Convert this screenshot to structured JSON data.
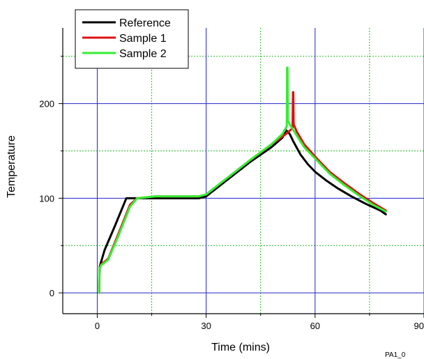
{
  "chart_data": {
    "type": "line",
    "title": "",
    "xlabel": "Time (mins)",
    "ylabel": "Temperature",
    "xlim": [
      -9.5,
      90
    ],
    "ylim": [
      -22,
      280
    ],
    "xticks": [
      0,
      30,
      60,
      90
    ],
    "yticks": [
      0,
      100,
      200
    ],
    "grid": {
      "major_x": [
        0,
        30,
        60,
        90
      ],
      "minor_x": [
        15,
        45,
        75
      ],
      "major_y": [
        0,
        100,
        200
      ],
      "minor_y": [
        50,
        150,
        250
      ],
      "major_color": "#2222cc",
      "minor_color": "#22bb22"
    },
    "legend_position": "top-left",
    "footnote": "PA1_0",
    "series": [
      {
        "name": "Reference",
        "color": "#000000",
        "x": [
          0.5,
          0.6,
          0.7,
          2,
          5,
          8,
          10,
          12,
          16,
          20,
          24,
          28,
          30,
          36,
          42,
          48,
          51,
          52,
          53,
          54,
          56,
          58,
          60,
          63,
          66,
          70,
          74,
          78,
          79.5
        ],
        "y": [
          0,
          20,
          28,
          45,
          72,
          100,
          100,
          100,
          100,
          100,
          100,
          100,
          102,
          120,
          138,
          154,
          164,
          172,
          168,
          160,
          146,
          136,
          128,
          119,
          111,
          102,
          94,
          87,
          83
        ]
      },
      {
        "name": "Sample 1",
        "color": "#dd1111",
        "x": [
          0.5,
          0.6,
          1,
          3,
          6,
          9,
          11,
          16,
          22,
          28,
          30,
          36,
          42,
          48,
          52,
          53.8,
          53.9,
          54.0,
          54.1,
          55,
          57,
          60,
          64,
          68,
          72,
          76,
          79.5
        ],
        "y": [
          0,
          25,
          30,
          36,
          64,
          93,
          100,
          102,
          102,
          102,
          104,
          122,
          140,
          157,
          168,
          174,
          212,
          212,
          178,
          170,
          157,
          144,
          128,
          116,
          105,
          95,
          87
        ]
      },
      {
        "name": "Sample 2",
        "color": "#33ee33",
        "x": [
          0.5,
          0.6,
          1,
          3,
          6,
          9,
          11,
          16,
          22,
          28,
          30,
          36,
          42,
          48,
          51,
          52.2,
          52.3,
          52.4,
          52.5,
          53,
          55,
          57,
          60,
          64,
          68,
          72,
          76,
          79.5
        ],
        "y": [
          0,
          25,
          29,
          35,
          62,
          91,
          100,
          102,
          102,
          102,
          104,
          122,
          140,
          157,
          168,
          176,
          238,
          238,
          182,
          178,
          166,
          154,
          142,
          126,
          114,
          103,
          93,
          86
        ]
      }
    ]
  }
}
